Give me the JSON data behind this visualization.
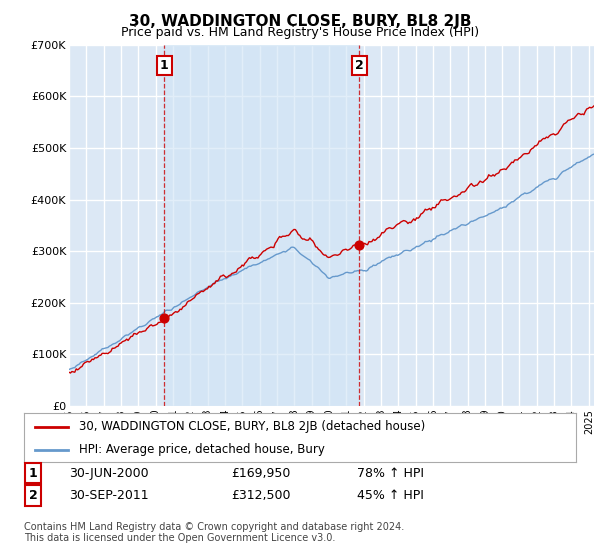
{
  "title": "30, WADDINGTON CLOSE, BURY, BL8 2JB",
  "subtitle": "Price paid vs. HM Land Registry's House Price Index (HPI)",
  "legend_line1": "30, WADDINGTON CLOSE, BURY, BL8 2JB (detached house)",
  "legend_line2": "HPI: Average price, detached house, Bury",
  "transaction1": {
    "label": "1",
    "date": "30-JUN-2000",
    "price": "£169,950",
    "change": "78% ↑ HPI",
    "x_year": 2000.5
  },
  "transaction2": {
    "label": "2",
    "date": "30-SEP-2011",
    "price": "£312,500",
    "change": "45% ↑ HPI",
    "x_year": 2011.75
  },
  "footnote1": "Contains HM Land Registry data © Crown copyright and database right 2024.",
  "footnote2": "This data is licensed under the Open Government Licence v3.0.",
  "red_color": "#cc0000",
  "blue_color": "#6699cc",
  "bg_color": "#dce8f5",
  "shade_color": "#d0e4f5",
  "grid_color": "#ffffff",
  "ylim": [
    0,
    700000
  ],
  "xlim_start": 1995.0,
  "xlim_end": 2025.3
}
